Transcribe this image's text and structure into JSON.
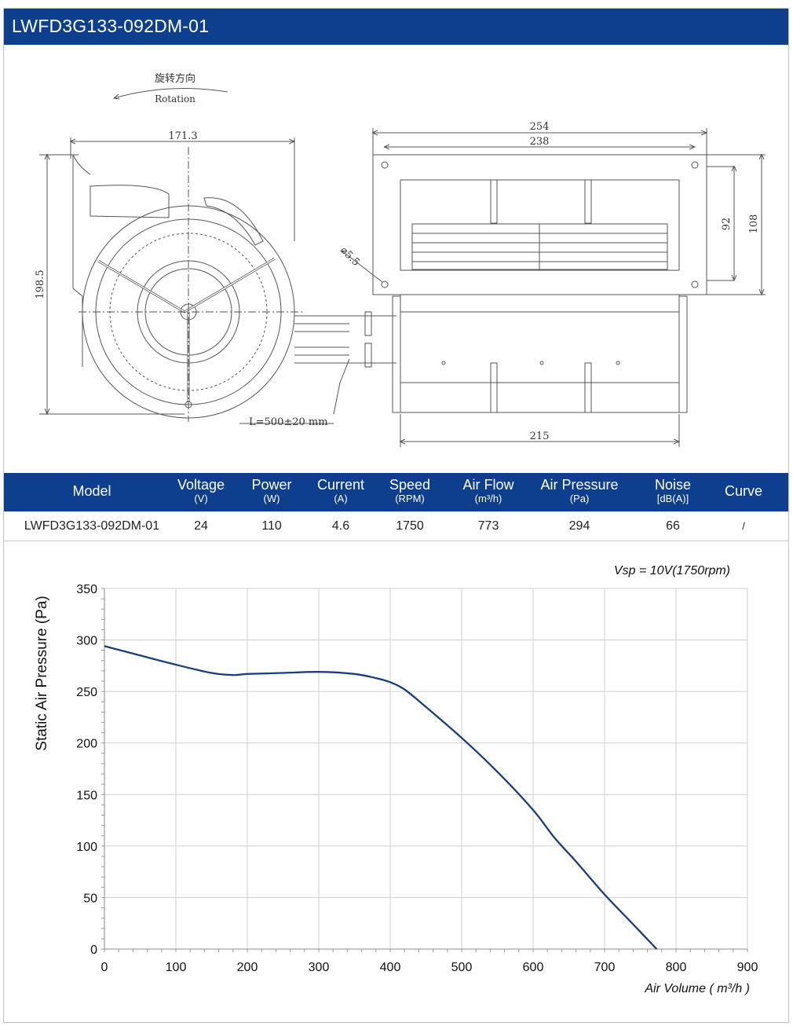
{
  "header": {
    "title": "LWFD3G133-092DM-01"
  },
  "drawing": {
    "rotation_cn": "旋转方向",
    "rotation_en": "Rotation",
    "dim_width_front": "171.3",
    "dim_height_front": "198.5",
    "dim_total_width": "254",
    "dim_hole_spacing": "238",
    "dim_hole_diameter": "⌀5.5",
    "dim_height_92": "92",
    "dim_height_108": "108",
    "dim_body_width": "215",
    "cable_length": "L=500±20 mm"
  },
  "spec_table": {
    "headers": [
      {
        "name": "Model",
        "unit": ""
      },
      {
        "name": "Voltage",
        "unit": "(V)"
      },
      {
        "name": "Power",
        "unit": "(W)"
      },
      {
        "name": "Current",
        "unit": "(A)"
      },
      {
        "name": "Speed",
        "unit": "(RPM)"
      },
      {
        "name": "Air Flow",
        "unit": "(m³/h)"
      },
      {
        "name": "Air Pressure",
        "unit": "(Pa)"
      },
      {
        "name": "Noise",
        "unit": "[dB(A)]"
      },
      {
        "name": "Curve",
        "unit": ""
      }
    ],
    "row": [
      "LWFD3G133-092DM-01",
      "24",
      "110",
      "4.6",
      "1750",
      "773",
      "294",
      "66",
      "/"
    ]
  },
  "chart_data": {
    "type": "line",
    "annotation": "Vsp = 10V(1750rpm)",
    "xlabel": "Air Volume ( m³/h )",
    "ylabel": "Static Air Pressure  (Pa)",
    "xlim": [
      0,
      900
    ],
    "ylim": [
      0,
      350
    ],
    "xticks": [
      0,
      100,
      200,
      300,
      400,
      500,
      600,
      700,
      800,
      900
    ],
    "yticks": [
      0,
      50,
      100,
      150,
      200,
      250,
      300,
      350
    ],
    "grid": true,
    "line_color": "#1a3f7a",
    "series": [
      {
        "x": [
          0,
          50,
          100,
          150,
          180,
          200,
          250,
          300,
          350,
          380,
          400,
          420,
          450,
          500,
          550,
          600,
          630,
          660,
          700,
          740,
          773
        ],
        "y": [
          294,
          285,
          276,
          268,
          266,
          267,
          268,
          269,
          267,
          263,
          259,
          252,
          235,
          205,
          172,
          135,
          108,
          85,
          53,
          24,
          0
        ]
      }
    ]
  }
}
